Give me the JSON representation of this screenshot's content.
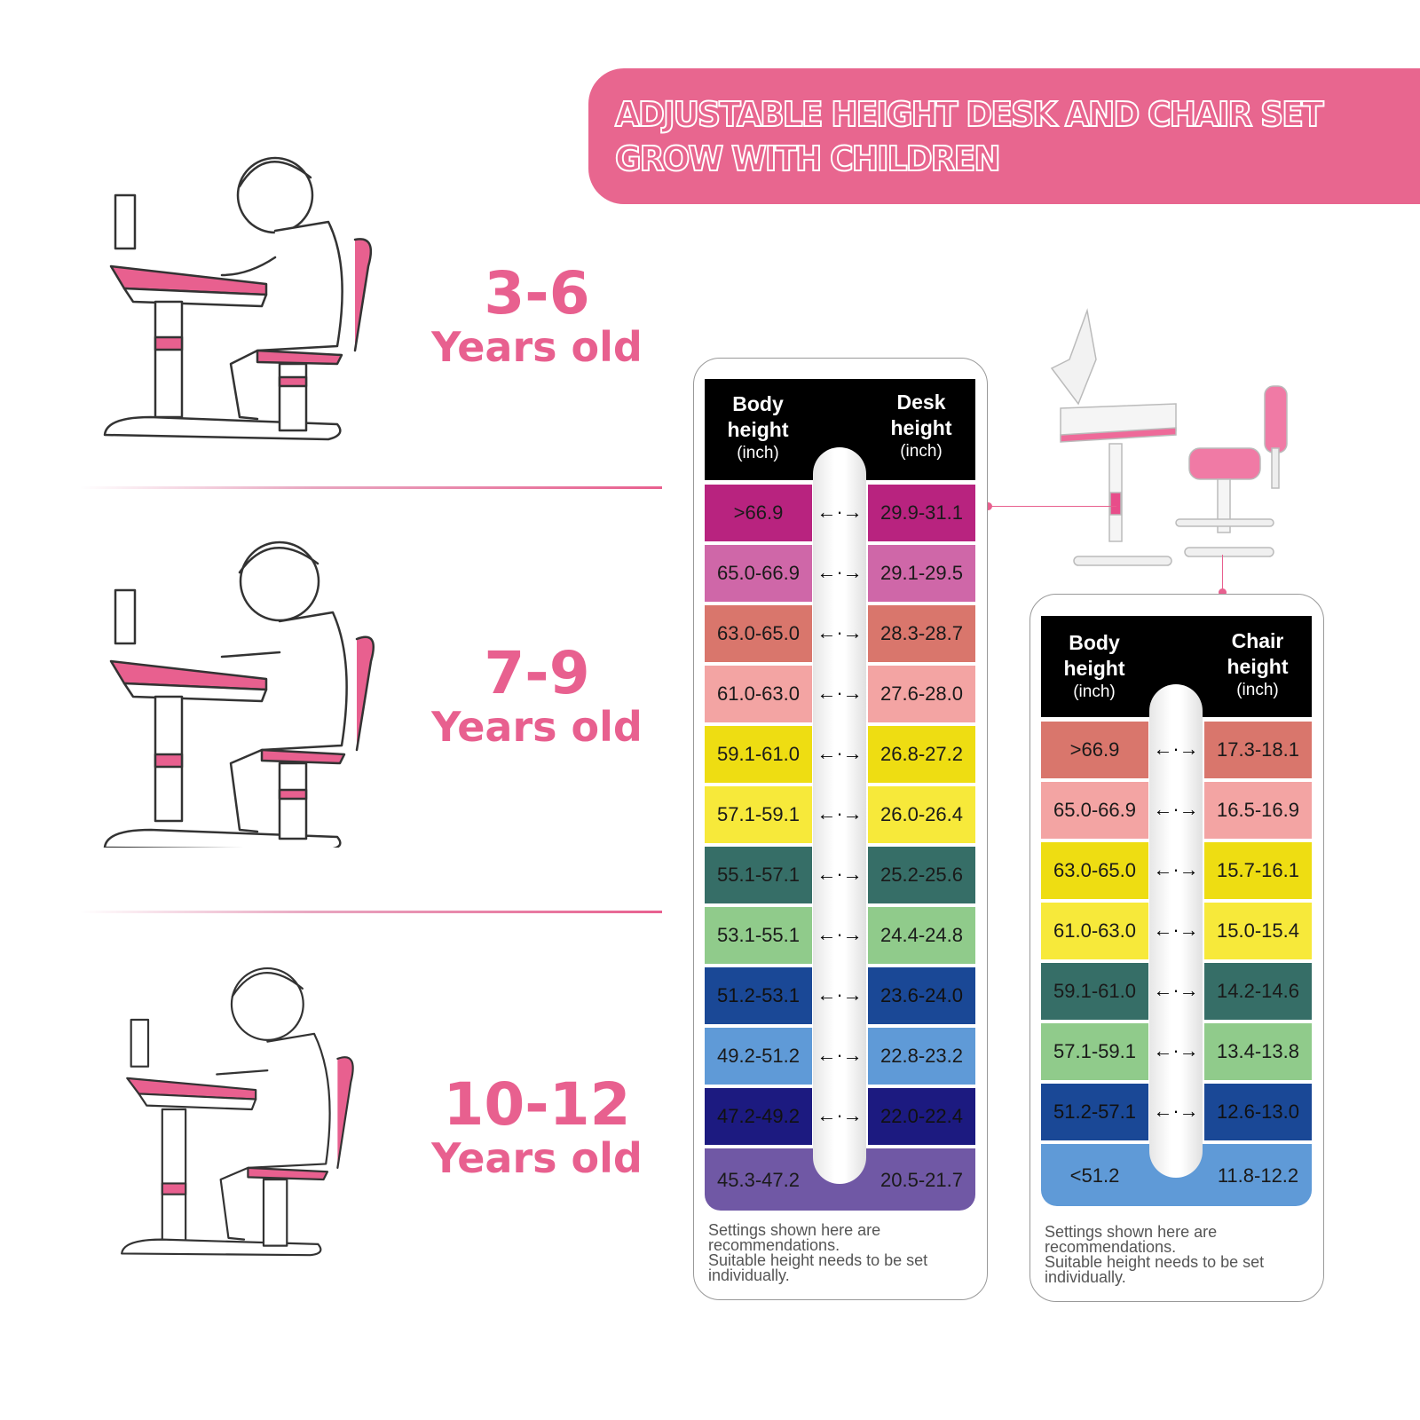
{
  "banner": {
    "line1": "ADJUSTABLE HEIGHT DESK AND CHAIR SET",
    "line2": "GROW WITH CHILDREN",
    "color": "#e8668f"
  },
  "age_groups": [
    {
      "range": "3-6",
      "label": "Years old"
    },
    {
      "range": "7-9",
      "label": "Years old"
    },
    {
      "range": "10-12",
      "label": "Years old"
    }
  ],
  "desk_table": {
    "col1": {
      "title": "Body",
      "title2": "height",
      "unit": "(inch)"
    },
    "col2": {
      "title": "Desk",
      "title2": "height",
      "unit": "(inch)"
    },
    "rows": [
      {
        "body": ">66.9",
        "value": "29.9-31.1",
        "color": "#b8237f"
      },
      {
        "body": "65.0-66.9",
        "value": "29.1-29.5",
        "color": "#cf67a8"
      },
      {
        "body": "63.0-65.0",
        "value": "28.3-28.7",
        "color": "#d9766c"
      },
      {
        "body": "61.0-63.0",
        "value": "27.6-28.0",
        "color": "#f3a4a3"
      },
      {
        "body": "59.1-61.0",
        "value": "26.8-27.2",
        "color": "#eedd12"
      },
      {
        "body": "57.1-59.1",
        "value": "26.0-26.4",
        "color": "#f7e93a"
      },
      {
        "body": "55.1-57.1",
        "value": "25.2-25.6",
        "color": "#366e67"
      },
      {
        "body": "53.1-55.1",
        "value": "24.4-24.8",
        "color": "#90cb8b"
      },
      {
        "body": "51.2-53.1",
        "value": "23.6-24.0",
        "color": "#1a4896"
      },
      {
        "body": "49.2-51.2",
        "value": "22.8-23.2",
        "color": "#5f9ad7"
      },
      {
        "body": "47.2-49.2",
        "value": "22.0-22.4",
        "color": "#1c1a80"
      },
      {
        "body": "45.3-47.2",
        "value": "20.5-21.7",
        "color": "#7058a5"
      }
    ],
    "note": [
      "Settings shown here are",
      "recommendations.",
      "Suitable height needs to be set",
      "individually."
    ]
  },
  "chair_table": {
    "col1": {
      "title": "Body",
      "title2": "height",
      "unit": "(inch)"
    },
    "col2": {
      "title": "Chair",
      "title2": "height",
      "unit": "(inch)"
    },
    "rows": [
      {
        "body": ">66.9",
        "value": "17.3-18.1",
        "color": "#d9766c"
      },
      {
        "body": "65.0-66.9",
        "value": "16.5-16.9",
        "color": "#f3a4a3"
      },
      {
        "body": "63.0-65.0",
        "value": "15.7-16.1",
        "color": "#eedd12"
      },
      {
        "body": "61.0-63.0",
        "value": "15.0-15.4",
        "color": "#f7e93a"
      },
      {
        "body": "59.1-61.0",
        "value": "14.2-14.6",
        "color": "#366e67"
      },
      {
        "body": "57.1-59.1",
        "value": "13.4-13.8",
        "color": "#90cb8b"
      },
      {
        "body": "51.2-57.1",
        "value": "12.6-13.0",
        "color": "#1a4896"
      },
      {
        "body": "<51.2",
        "value": "11.8-12.2",
        "color": "#5f9ad7"
      }
    ],
    "note": [
      "Settings shown here are",
      "recommendations.",
      "Suitable height needs to be set",
      "individually."
    ]
  },
  "accent": "#e8608f"
}
